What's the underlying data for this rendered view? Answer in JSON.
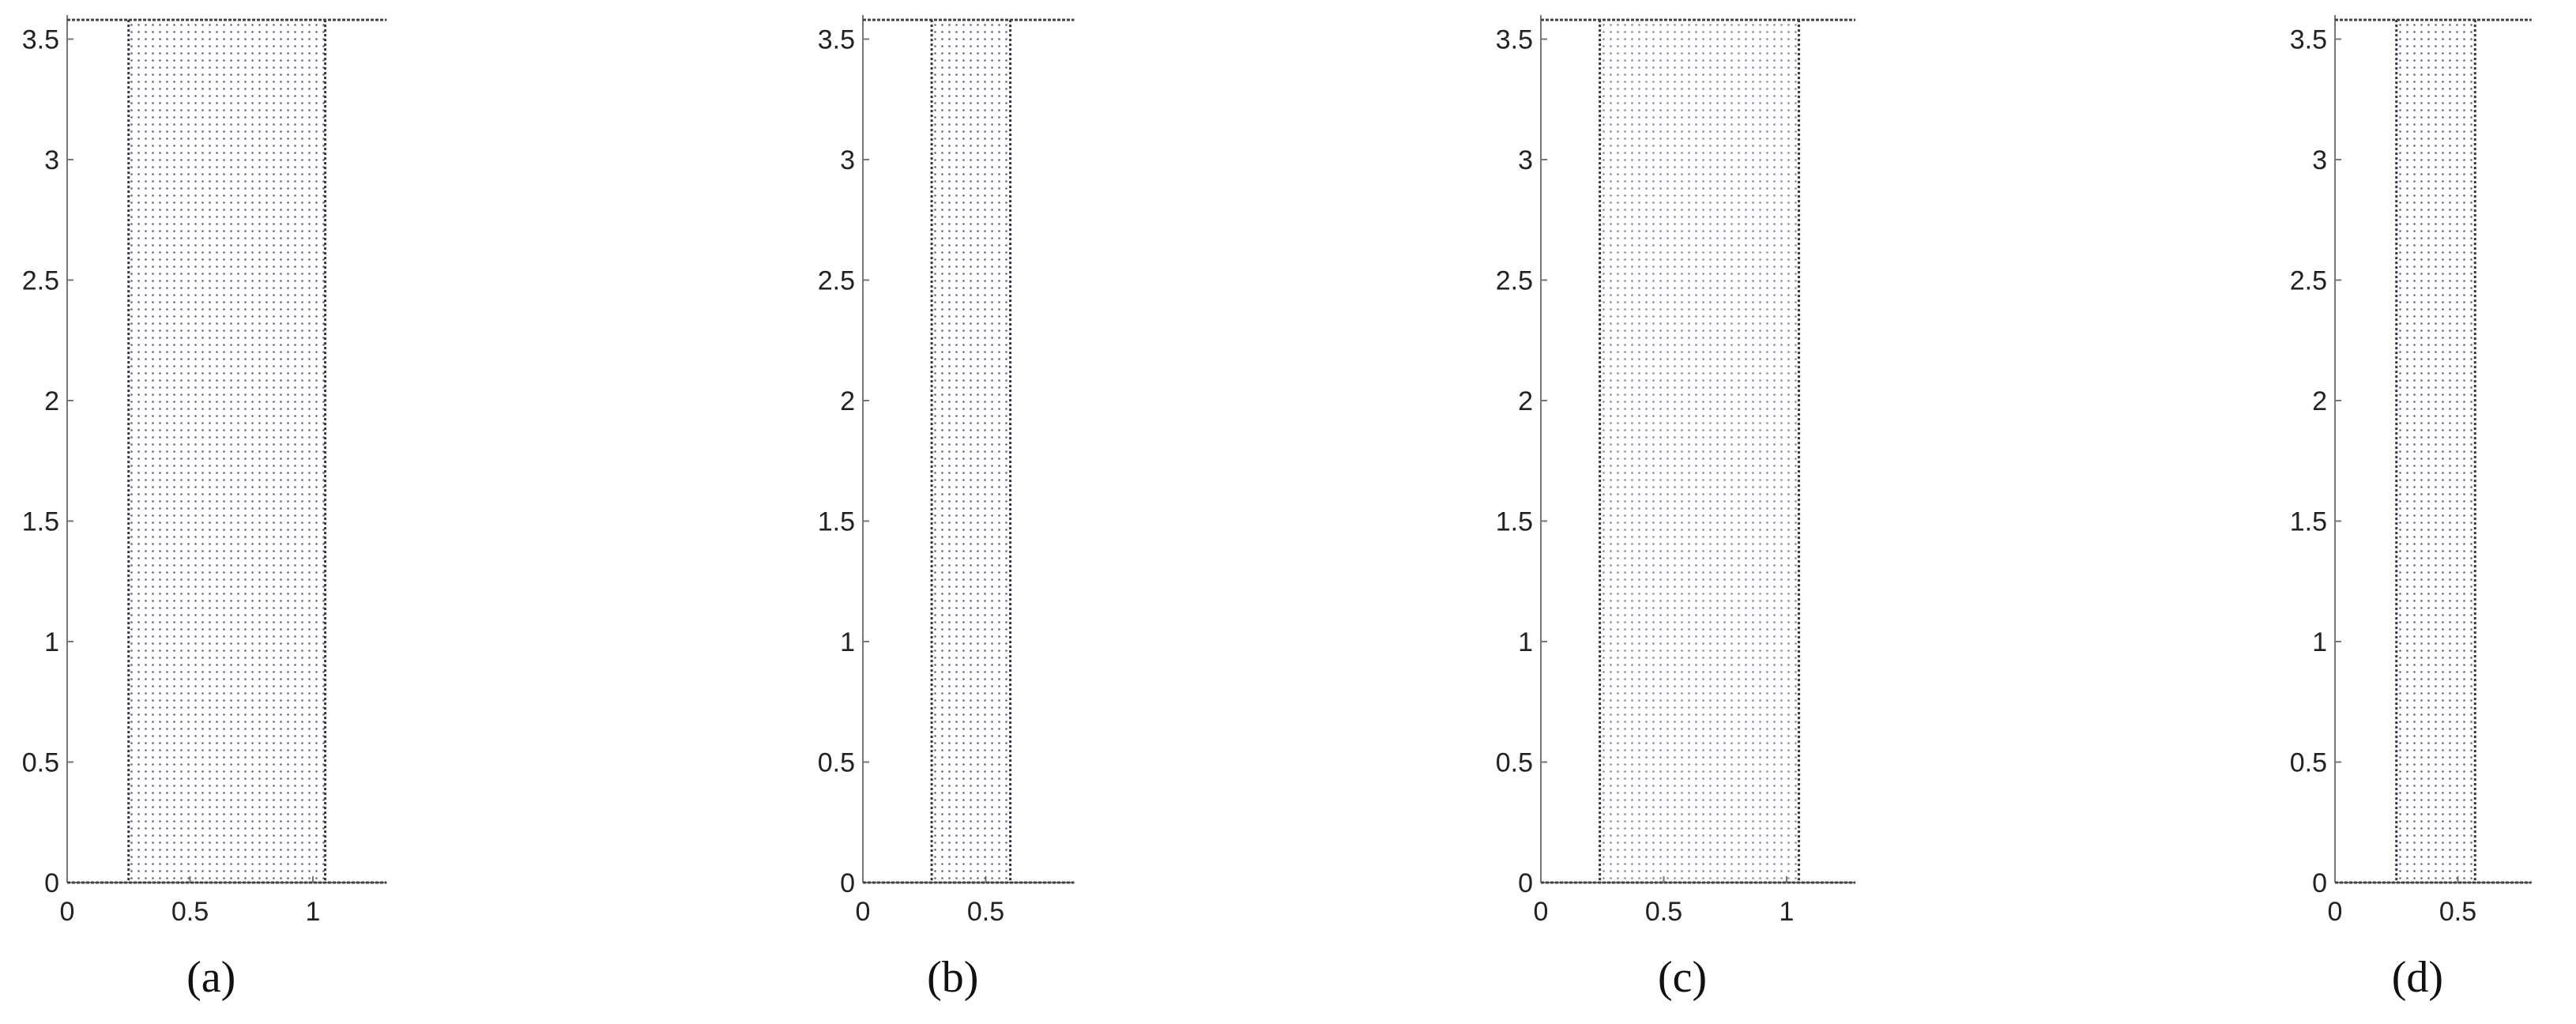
{
  "chart_data": [
    {
      "type": "scatter",
      "label": "(a)",
      "xlim": [
        0,
        1.3
      ],
      "ylim": [
        0,
        3.6
      ],
      "xticks": [
        0,
        0.5,
        1
      ],
      "yticks": [
        0,
        0.5,
        1,
        1.5,
        2,
        2.5,
        3,
        3.5
      ],
      "color": "#3b4a78",
      "blocks": [
        {
          "x": [
            0.25,
            1.05
          ],
          "y": [
            0,
            3.58
          ]
        }
      ],
      "walls": [
        {
          "x": [
            0,
            1.3
          ],
          "y": 3.58
        },
        {
          "x": [
            0,
            1.3
          ],
          "y": 0
        }
      ]
    },
    {
      "type": "scatter",
      "label": "(b)",
      "xlim": [
        0,
        0.86
      ],
      "ylim": [
        0,
        3.6
      ],
      "xticks": [
        0,
        0.5
      ],
      "yticks": [
        0,
        0.5,
        1,
        1.5,
        2,
        2.5,
        3,
        3.5
      ],
      "color": "#3b4a78",
      "blocks": [
        {
          "x": [
            0.28,
            0.6
          ],
          "y": [
            0,
            3.58
          ]
        }
      ],
      "walls": [
        {
          "x": [
            0,
            0.86
          ],
          "y": 3.58
        },
        {
          "x": [
            0,
            0.86
          ],
          "y": 0
        }
      ]
    },
    {
      "type": "scatter",
      "label": "(c)",
      "xlim": [
        0,
        1.28
      ],
      "ylim": [
        0,
        3.6
      ],
      "xticks": [
        0,
        0.5,
        1
      ],
      "yticks": [
        0,
        0.5,
        1,
        1.5,
        2,
        2.5,
        3,
        3.5
      ],
      "color": "#6a7390",
      "blocks": [
        {
          "x": [
            0.24,
            1.05
          ],
          "y": [
            0,
            3.58
          ]
        }
      ],
      "walls": [
        {
          "x": [
            0,
            1.28
          ],
          "y": 3.58
        },
        {
          "x": [
            0,
            1.28
          ],
          "y": 0
        }
      ]
    },
    {
      "type": "scatter",
      "label": "(d)",
      "xlim": [
        0,
        0.8
      ],
      "ylim": [
        0,
        3.6
      ],
      "xticks": [
        0,
        0.5
      ],
      "yticks": [
        0,
        0.5,
        1,
        1.5,
        2,
        2.5,
        3,
        3.5
      ],
      "color": "#3b4a78",
      "blocks": [
        {
          "x": [
            0.25,
            0.57
          ],
          "y": [
            0,
            3.58
          ]
        }
      ],
      "walls": [
        {
          "x": [
            0,
            0.8
          ],
          "y": 3.58
        },
        {
          "x": [
            0,
            0.8
          ],
          "y": 0
        }
      ]
    }
  ]
}
